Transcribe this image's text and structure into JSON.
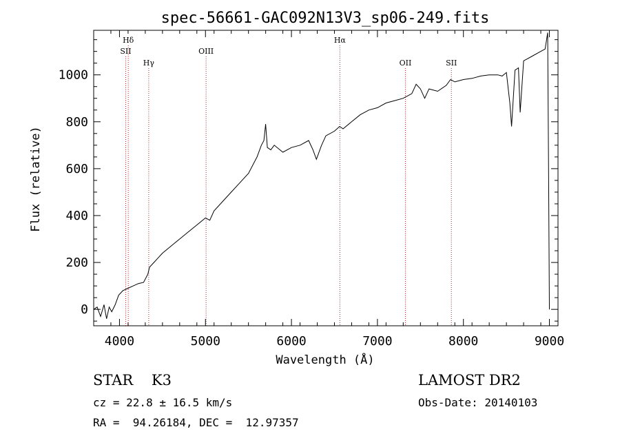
{
  "chart_data": {
    "type": "line",
    "title": "spec-56661-GAC092N13V3_sp06-249.fits",
    "xlabel": "Wavelength (Å)",
    "ylabel": "Flux (relative)",
    "xlim": [
      3700,
      9100
    ],
    "ylim": [
      -70,
      1190
    ],
    "xticks": [
      4000,
      5000,
      6000,
      7000,
      8000,
      9000
    ],
    "yticks": [
      0,
      200,
      400,
      600,
      800,
      1000
    ],
    "grid": false,
    "line_color": "#000000",
    "marker_color": "#b22222",
    "spectral_lines": [
      {
        "label": "Hδ",
        "wavelength": 4102,
        "row": 0
      },
      {
        "label": "SII",
        "wavelength": 4072,
        "row": 1
      },
      {
        "label": "Hγ",
        "wavelength": 4340,
        "row": 2
      },
      {
        "label": "OIII",
        "wavelength": 5007,
        "row": 1
      },
      {
        "label": "Hα",
        "wavelength": 6563,
        "row": 0
      },
      {
        "label": "OII",
        "wavelength": 7325,
        "row": 2
      },
      {
        "label": "SII",
        "wavelength": 7860,
        "row": 2
      }
    ],
    "x": [
      3700,
      3740,
      3780,
      3820,
      3850,
      3880,
      3910,
      3950,
      3990,
      4040,
      4100,
      4160,
      4220,
      4280,
      4330,
      4350,
      4400,
      4450,
      4500,
      4600,
      4700,
      4800,
      4900,
      5000,
      5050,
      5100,
      5200,
      5300,
      5400,
      5500,
      5600,
      5650,
      5680,
      5700,
      5720,
      5760,
      5800,
      5900,
      6000,
      6100,
      6200,
      6250,
      6290,
      6350,
      6400,
      6500,
      6560,
      6600,
      6700,
      6800,
      6900,
      7000,
      7100,
      7200,
      7300,
      7400,
      7450,
      7500,
      7550,
      7600,
      7700,
      7800,
      7850,
      7900,
      8000,
      8100,
      8200,
      8300,
      8400,
      8450,
      8500,
      8540,
      8560,
      8600,
      8640,
      8660,
      8700,
      8800,
      8900,
      8950,
      8980,
      8990,
      9000
    ],
    "y": [
      0,
      10,
      -30,
      20,
      -40,
      10,
      -10,
      20,
      60,
      80,
      90,
      100,
      110,
      115,
      150,
      180,
      200,
      220,
      240,
      270,
      300,
      330,
      360,
      390,
      380,
      420,
      460,
      500,
      540,
      580,
      650,
      700,
      720,
      790,
      690,
      680,
      700,
      670,
      690,
      700,
      720,
      680,
      640,
      700,
      740,
      760,
      780,
      770,
      800,
      830,
      850,
      860,
      880,
      890,
      900,
      920,
      960,
      940,
      900,
      940,
      930,
      955,
      980,
      970,
      980,
      985,
      995,
      1000,
      1000,
      995,
      1010,
      880,
      780,
      1020,
      1030,
      840,
      1060,
      1080,
      1100,
      1110,
      1180,
      600,
      0
    ],
    "info": {
      "class_label": "STAR    K3",
      "cz": "cz = 22.8 ± 16.5 km/s",
      "radec": "RA =  94.26184, DEC =  12.97357",
      "survey": "LAMOST DR2",
      "obs_date": "Obs-Date: 20140103"
    }
  }
}
